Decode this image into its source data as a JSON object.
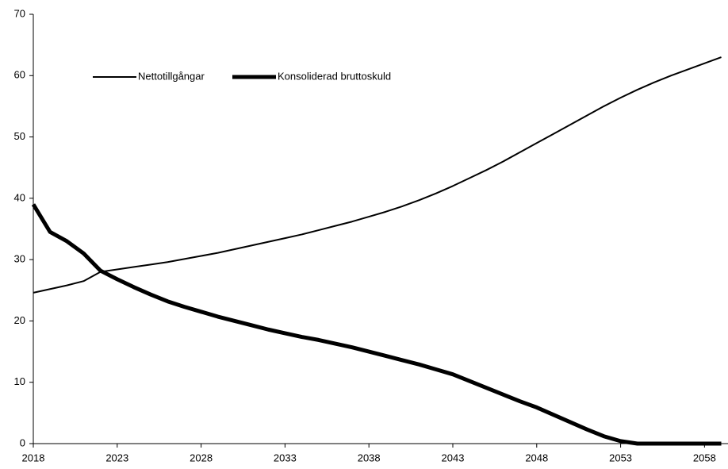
{
  "chart_data": {
    "type": "line",
    "x": [
      2018,
      2019,
      2020,
      2021,
      2022,
      2023,
      2024,
      2025,
      2026,
      2027,
      2028,
      2029,
      2030,
      2031,
      2032,
      2033,
      2034,
      2035,
      2036,
      2037,
      2038,
      2039,
      2040,
      2041,
      2042,
      2043,
      2044,
      2045,
      2046,
      2047,
      2048,
      2049,
      2050,
      2051,
      2052,
      2053,
      2054,
      2055,
      2056,
      2057,
      2058,
      2059
    ],
    "series": [
      {
        "name": "Nettotillgångar",
        "color": "#000000",
        "width": 2,
        "values": [
          24.6,
          25.2,
          25.8,
          26.5,
          28.0,
          28.4,
          28.8,
          29.2,
          29.6,
          30.1,
          30.6,
          31.1,
          31.7,
          32.3,
          32.9,
          33.5,
          34.1,
          34.8,
          35.5,
          36.2,
          37.0,
          37.8,
          38.7,
          39.7,
          40.8,
          42.0,
          43.3,
          44.6,
          46.0,
          47.5,
          49.0,
          50.5,
          52.0,
          53.5,
          55.0,
          56.4,
          57.7,
          58.9,
          60.0,
          61.0,
          62.0,
          63.0
        ]
      },
      {
        "name": "Konsoliderad bruttoskuld",
        "color": "#000000",
        "width": 5,
        "values": [
          39.0,
          34.5,
          33.0,
          31.0,
          28.2,
          26.8,
          25.5,
          24.3,
          23.2,
          22.3,
          21.5,
          20.7,
          20.0,
          19.3,
          18.6,
          18.0,
          17.4,
          16.9,
          16.3,
          15.7,
          15.0,
          14.3,
          13.6,
          12.9,
          12.1,
          11.3,
          10.2,
          9.1,
          8.0,
          6.9,
          5.9,
          4.7,
          3.5,
          2.3,
          1.2,
          0.4,
          0,
          0,
          0,
          0,
          0,
          0
        ]
      }
    ],
    "xlim": [
      2018,
      2059.4
    ],
    "xticks": [
      2018,
      2023,
      2028,
      2033,
      2038,
      2043,
      2048,
      2053,
      2058
    ],
    "ylim": [
      0,
      70
    ],
    "yticks": [
      0,
      10,
      20,
      30,
      40,
      50,
      60,
      70
    ],
    "grid": false,
    "legend": "upper-left"
  }
}
